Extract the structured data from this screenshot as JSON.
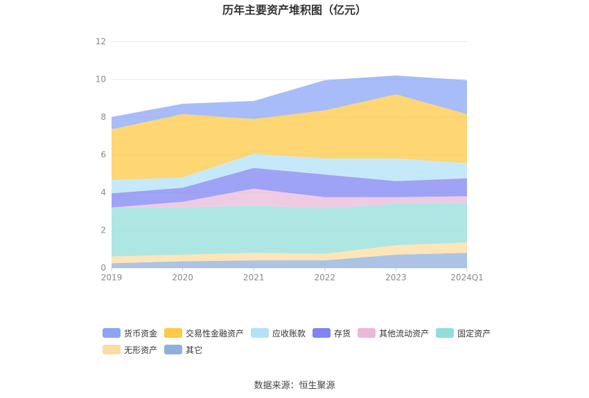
{
  "chart_data": {
    "type": "area",
    "stacked": true,
    "title": "历年主要资产堆积图（亿元）",
    "categories": [
      "2019",
      "2020",
      "2021",
      "2022",
      "2023",
      "2024Q1"
    ],
    "ylim": [
      0,
      12
    ],
    "yticks": [
      0,
      2,
      4,
      6,
      8,
      10,
      12
    ],
    "grid": true,
    "legend_position": "bottom",
    "series": [
      {
        "name": "其它",
        "color": "#8FB0DC",
        "values": [
          0.25,
          0.35,
          0.4,
          0.4,
          0.7,
          0.8
        ]
      },
      {
        "name": "无形资产",
        "color": "#FCDCA0",
        "values": [
          0.35,
          0.35,
          0.4,
          0.35,
          0.5,
          0.55
        ]
      },
      {
        "name": "固定资产",
        "color": "#93DDD9",
        "values": [
          2.6,
          2.5,
          2.5,
          2.4,
          2.2,
          2.1
        ]
      },
      {
        "name": "其他流动资产",
        "color": "#EAB9DA",
        "values": [
          0.0,
          0.3,
          0.9,
          0.6,
          0.35,
          0.35
        ]
      },
      {
        "name": "存货",
        "color": "#7F84F2",
        "values": [
          0.75,
          0.75,
          1.1,
          1.2,
          0.85,
          0.95
        ]
      },
      {
        "name": "应收账款",
        "color": "#B3E2F8",
        "values": [
          0.7,
          0.55,
          0.75,
          0.85,
          1.2,
          0.8
        ]
      },
      {
        "name": "交易性金融资产",
        "color": "#FFC845",
        "values": [
          2.7,
          3.35,
          1.85,
          2.55,
          3.4,
          2.6
        ]
      },
      {
        "name": "货币资金",
        "color": "#8AA6F5",
        "values": [
          0.65,
          0.55,
          0.95,
          1.6,
          1.0,
          1.8
        ]
      }
    ]
  },
  "legend_order": [
    "货币资金",
    "交易性金融资产",
    "应收账款",
    "存货",
    "其他流动资产",
    "固定资产",
    "无形资产",
    "其它"
  ],
  "source": "数据来源：恒生聚源"
}
